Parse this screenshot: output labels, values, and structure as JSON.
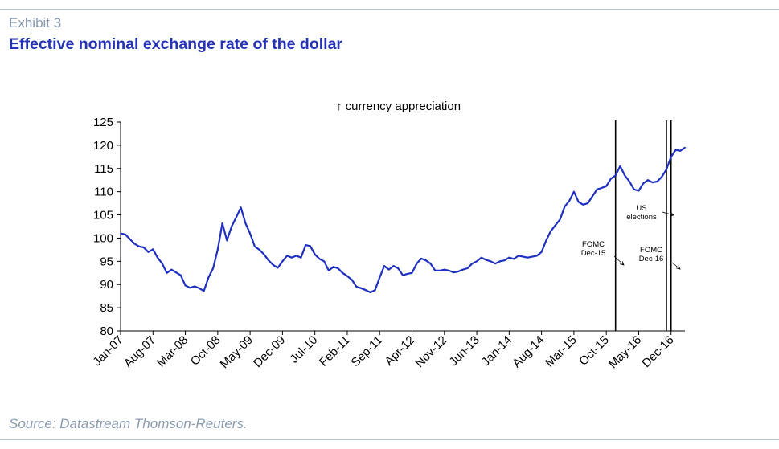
{
  "header": {
    "exhibit": "Exhibit 3",
    "title": "Effective nominal exchange rate of the dollar"
  },
  "footer": {
    "source": "Source: Datastream Thomson-Reuters."
  },
  "colors": {
    "series": "#1f2fbf",
    "title": "#2433b5",
    "muted": "#8a9bb0"
  },
  "chart_data": {
    "type": "line",
    "title": "",
    "xlabel": "",
    "ylabel": "",
    "annotation_top": "↑ currency appreciation",
    "ylim": [
      80,
      125
    ],
    "yticks": [
      80,
      85,
      90,
      95,
      100,
      105,
      110,
      115,
      120,
      125
    ],
    "x_range": [
      "Jan-07",
      "Mar-17"
    ],
    "xtick_labels": [
      "Jan-07",
      "Aug-07",
      "Mar-08",
      "Oct-08",
      "May-09",
      "Dec-09",
      "Jul-10",
      "Feb-11",
      "Sep-11",
      "Apr-12",
      "Nov-12",
      "Jun-13",
      "Jan-14",
      "Aug-14",
      "Mar-15",
      "Oct-15",
      "May-16",
      "Dec-16"
    ],
    "grid": false,
    "legend": "none",
    "series": [
      {
        "points": [
          [
            "2007-01",
            101.0
          ],
          [
            "2007-02",
            100.8
          ],
          [
            "2007-03",
            99.8
          ],
          [
            "2007-04",
            98.8
          ],
          [
            "2007-05",
            98.2
          ],
          [
            "2007-06",
            98.0
          ],
          [
            "2007-07",
            97.0
          ],
          [
            "2007-08",
            97.6
          ],
          [
            "2007-09",
            95.8
          ],
          [
            "2007-10",
            94.5
          ],
          [
            "2007-11",
            92.5
          ],
          [
            "2007-12",
            93.2
          ],
          [
            "2008-01",
            92.6
          ],
          [
            "2008-02",
            92.0
          ],
          [
            "2008-03",
            89.8
          ],
          [
            "2008-04",
            89.3
          ],
          [
            "2008-05",
            89.6
          ],
          [
            "2008-06",
            89.2
          ],
          [
            "2008-07",
            88.6
          ],
          [
            "2008-08",
            91.5
          ],
          [
            "2008-09",
            93.5
          ],
          [
            "2008-10",
            97.5
          ],
          [
            "2008-11",
            103.2
          ],
          [
            "2008-12",
            99.5
          ],
          [
            "2009-01",
            102.5
          ],
          [
            "2009-02",
            104.5
          ],
          [
            "2009-03",
            106.6
          ],
          [
            "2009-04",
            103.2
          ],
          [
            "2009-05",
            101.0
          ],
          [
            "2009-06",
            98.2
          ],
          [
            "2009-07",
            97.5
          ],
          [
            "2009-08",
            96.5
          ],
          [
            "2009-09",
            95.2
          ],
          [
            "2009-10",
            94.2
          ],
          [
            "2009-11",
            93.6
          ],
          [
            "2009-12",
            95.0
          ],
          [
            "2010-01",
            96.2
          ],
          [
            "2010-02",
            95.8
          ],
          [
            "2010-03",
            96.2
          ],
          [
            "2010-04",
            95.8
          ],
          [
            "2010-05",
            98.5
          ],
          [
            "2010-06",
            98.3
          ],
          [
            "2010-07",
            96.5
          ],
          [
            "2010-08",
            95.5
          ],
          [
            "2010-09",
            95.0
          ],
          [
            "2010-10",
            93.0
          ],
          [
            "2010-11",
            93.8
          ],
          [
            "2010-12",
            93.5
          ],
          [
            "2011-01",
            92.5
          ],
          [
            "2011-02",
            91.8
          ],
          [
            "2011-03",
            91.0
          ],
          [
            "2011-04",
            89.5
          ],
          [
            "2011-05",
            89.2
          ],
          [
            "2011-06",
            88.8
          ],
          [
            "2011-07",
            88.3
          ],
          [
            "2011-08",
            88.8
          ],
          [
            "2011-09",
            91.5
          ],
          [
            "2011-10",
            94.0
          ],
          [
            "2011-11",
            93.2
          ],
          [
            "2011-12",
            94.0
          ],
          [
            "2012-01",
            93.5
          ],
          [
            "2012-02",
            92.0
          ],
          [
            "2012-03",
            92.3
          ],
          [
            "2012-04",
            92.5
          ],
          [
            "2012-05",
            94.5
          ],
          [
            "2012-06",
            95.6
          ],
          [
            "2012-07",
            95.2
          ],
          [
            "2012-08",
            94.5
          ],
          [
            "2012-09",
            93.0
          ],
          [
            "2012-10",
            93.0
          ],
          [
            "2012-11",
            93.2
          ],
          [
            "2012-12",
            93.0
          ],
          [
            "2013-01",
            92.6
          ],
          [
            "2013-02",
            92.8
          ],
          [
            "2013-03",
            93.2
          ],
          [
            "2013-04",
            93.5
          ],
          [
            "2013-05",
            94.5
          ],
          [
            "2013-06",
            95.0
          ],
          [
            "2013-07",
            95.8
          ],
          [
            "2013-08",
            95.3
          ],
          [
            "2013-09",
            95.0
          ],
          [
            "2013-10",
            94.5
          ],
          [
            "2013-11",
            95.0
          ],
          [
            "2013-12",
            95.2
          ],
          [
            "2014-01",
            95.8
          ],
          [
            "2014-02",
            95.5
          ],
          [
            "2014-03",
            96.2
          ],
          [
            "2014-04",
            96.0
          ],
          [
            "2014-05",
            95.8
          ],
          [
            "2014-06",
            96.0
          ],
          [
            "2014-07",
            96.2
          ],
          [
            "2014-08",
            97.0
          ],
          [
            "2014-09",
            99.5
          ],
          [
            "2014-10",
            101.5
          ],
          [
            "2014-11",
            102.8
          ],
          [
            "2014-12",
            104.0
          ],
          [
            "2015-01",
            106.8
          ],
          [
            "2015-02",
            108.0
          ],
          [
            "2015-03",
            110.0
          ],
          [
            "2015-04",
            107.8
          ],
          [
            "2015-05",
            107.2
          ],
          [
            "2015-06",
            107.5
          ],
          [
            "2015-07",
            109.0
          ],
          [
            "2015-08",
            110.5
          ],
          [
            "2015-09",
            110.8
          ],
          [
            "2015-10",
            111.2
          ],
          [
            "2015-11",
            112.8
          ],
          [
            "2015-12",
            113.5
          ],
          [
            "2016-01",
            115.5
          ],
          [
            "2016-02",
            113.5
          ],
          [
            "2016-03",
            112.2
          ],
          [
            "2016-04",
            110.5
          ],
          [
            "2016-05",
            110.2
          ],
          [
            "2016-06",
            111.8
          ],
          [
            "2016-07",
            112.5
          ],
          [
            "2016-08",
            112.0
          ],
          [
            "2016-09",
            112.2
          ],
          [
            "2016-10",
            113.2
          ],
          [
            "2016-11",
            114.8
          ],
          [
            "2016-12",
            117.5
          ],
          [
            "2017-01",
            119.0
          ],
          [
            "2017-02",
            118.8
          ],
          [
            "2017-03",
            119.5
          ]
        ]
      }
    ],
    "event_lines": [
      {
        "date": "2015-12",
        "label_lines": [
          "FOMC",
          "Dec-15"
        ]
      },
      {
        "date": "2016-11",
        "label_lines": [
          "US",
          "elections"
        ]
      },
      {
        "date": "2016-12",
        "label_lines": [
          "FOMC",
          "Dec-16"
        ]
      }
    ]
  }
}
